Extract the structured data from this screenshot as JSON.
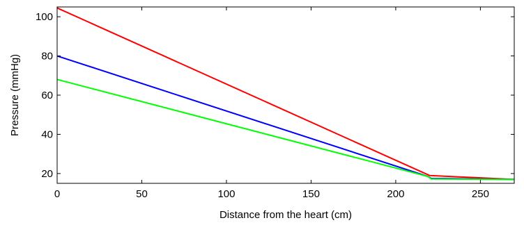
{
  "chart_data": {
    "type": "line",
    "title": "",
    "xlabel": "Distance from the heart (cm)",
    "ylabel": "Pressure (mmHg)",
    "xlim": [
      0,
      270
    ],
    "ylim": [
      15,
      105
    ],
    "xticks": [
      0,
      50,
      100,
      150,
      200,
      250
    ],
    "yticks": [
      20,
      40,
      60,
      80,
      100
    ],
    "grid": false,
    "legend": "none",
    "series": [
      {
        "color": "#ff0000",
        "x": [
          0,
          220,
          270
        ],
        "y": [
          104.5,
          19,
          17
        ]
      },
      {
        "color": "#0000ff",
        "x": [
          0,
          219,
          221,
          270
        ],
        "y": [
          80,
          18.5,
          17.5,
          17
        ]
      },
      {
        "color": "#00ff00",
        "x": [
          0,
          219,
          221,
          270
        ],
        "y": [
          68,
          18.5,
          17.2,
          17
        ]
      }
    ]
  }
}
